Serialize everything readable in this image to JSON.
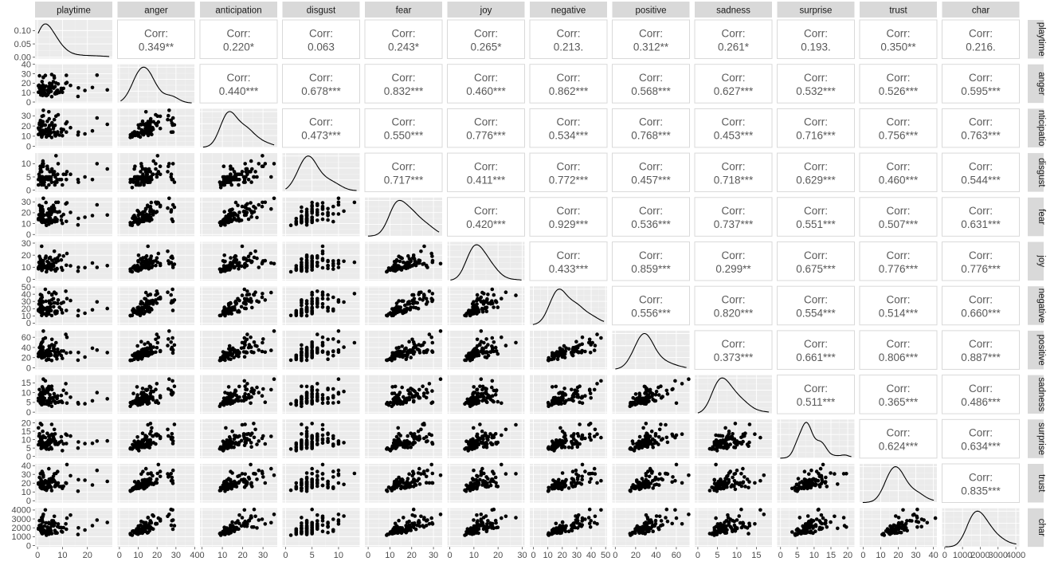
{
  "chart_data": {
    "type": "scatter",
    "subtype": "pairs-plot (GGally ggpairs)",
    "variables": [
      "playtime",
      "anger",
      "anticipation",
      "disgust",
      "fear",
      "joy",
      "negative",
      "positive",
      "sadness",
      "surprise",
      "trust",
      "char"
    ],
    "strip_labels": {
      "top": [
        "playtime",
        "anger",
        "anticipation",
        "disgust",
        "fear",
        "joy",
        "negative",
        "positive",
        "sadness",
        "surprise",
        "trust",
        "char"
      ],
      "right": [
        "playtime",
        "anger",
        "nticipatio",
        "disgust",
        "fear",
        "joy",
        "negative",
        "positive",
        "sadness",
        "surprise",
        "trust",
        "char"
      ]
    },
    "corr_label": "Corr:",
    "correlations": [
      [
        "0.349**",
        "0.220*",
        "0.063",
        "0.243*",
        "0.265*",
        "0.213.",
        "0.312**",
        "0.261*",
        "0.193.",
        "0.350**",
        "0.216."
      ],
      [
        "0.440***",
        "0.678***",
        "0.832***",
        "0.460***",
        "0.862***",
        "0.568***",
        "0.627***",
        "0.532***",
        "0.526***",
        "0.595***"
      ],
      [
        "0.473***",
        "0.550***",
        "0.776***",
        "0.534***",
        "0.768***",
        "0.453***",
        "0.716***",
        "0.756***",
        "0.763***"
      ],
      [
        "0.717***",
        "0.411***",
        "0.772***",
        "0.457***",
        "0.718***",
        "0.629***",
        "0.460***",
        "0.544***"
      ],
      [
        "0.420***",
        "0.929***",
        "0.536***",
        "0.737***",
        "0.551***",
        "0.507***",
        "0.631***"
      ],
      [
        "0.433***",
        "0.859***",
        "0.299**",
        "0.675***",
        "0.776***",
        "0.776***"
      ],
      [
        "0.556***",
        "0.820***",
        "0.554***",
        "0.514***",
        "0.660***"
      ],
      [
        "0.373***",
        "0.661***",
        "0.806***",
        "0.887***"
      ],
      [
        "0.511***",
        "0.365***",
        "0.486***"
      ],
      [
        "0.624***",
        "0.634***"
      ],
      [
        "0.835***"
      ]
    ],
    "x_ranges": [
      [
        -1,
        30
      ],
      [
        -1,
        40
      ],
      [
        -1,
        37
      ],
      [
        -0.6,
        14
      ],
      [
        -1.5,
        34
      ],
      [
        -1,
        31
      ],
      [
        -2.5,
        51
      ],
      [
        -3,
        73
      ],
      [
        -0.8,
        19
      ],
      [
        -1,
        22
      ],
      [
        -2,
        42
      ],
      [
        -150,
        4200
      ]
    ],
    "x_ticks": [
      [
        "0",
        "10",
        "20"
      ],
      [
        "0",
        "10",
        "20",
        "30",
        "40"
      ],
      [
        "0",
        "10",
        "20",
        "30"
      ],
      [
        "0",
        "5",
        "10"
      ],
      [
        "0",
        "10",
        "20",
        "30"
      ],
      [
        "0",
        "10",
        "20",
        "30"
      ],
      [
        "0",
        "10",
        "20",
        "30",
        "40",
        "50"
      ],
      [
        "0",
        "20",
        "40",
        "60"
      ],
      [
        "0",
        "5",
        "10",
        "15"
      ],
      [
        "0",
        "5",
        "10",
        "15",
        "20"
      ],
      [
        "0",
        "10",
        "20",
        "30",
        "40"
      ],
      [
        "0",
        "1000",
        "2000",
        "3000",
        "4000"
      ]
    ],
    "x_tick_values": [
      [
        0,
        10,
        20
      ],
      [
        0,
        10,
        20,
        30,
        40
      ],
      [
        0,
        10,
        20,
        30
      ],
      [
        0,
        5,
        10
      ],
      [
        0,
        10,
        20,
        30
      ],
      [
        0,
        10,
        20,
        30
      ],
      [
        0,
        10,
        20,
        30,
        40,
        50
      ],
      [
        0,
        20,
        40,
        60
      ],
      [
        0,
        5,
        10,
        15
      ],
      [
        0,
        5,
        10,
        15,
        20
      ],
      [
        0,
        10,
        20,
        30,
        40
      ],
      [
        0,
        1000,
        2000,
        3000,
        4000
      ]
    ],
    "y_ticks": [
      [
        "0.00",
        "0.05",
        "0.10"
      ],
      [
        "0",
        "10",
        "20",
        "30",
        "40"
      ],
      [
        "0",
        "10",
        "20",
        "30"
      ],
      [
        "0",
        "5",
        "10"
      ],
      [
        "0",
        "10",
        "20",
        "30"
      ],
      [
        "0",
        "10",
        "20",
        "30"
      ],
      [
        "0",
        "10",
        "20",
        "30",
        "40",
        "50"
      ],
      [
        "0",
        "20",
        "40",
        "60"
      ],
      [
        "0",
        "5",
        "10",
        "15"
      ],
      [
        "0",
        "5",
        "10",
        "15",
        "20"
      ],
      [
        "0",
        "10",
        "20",
        "30",
        "40"
      ],
      [
        "0",
        "1000",
        "2000",
        "3000",
        "4000"
      ]
    ],
    "y_tick_values": [
      [
        0,
        0.05,
        0.1
      ],
      [
        0,
        10,
        20,
        30,
        40
      ],
      [
        0,
        10,
        20,
        30
      ],
      [
        0,
        5,
        10
      ],
      [
        0,
        10,
        20,
        30
      ],
      [
        0,
        10,
        20,
        30
      ],
      [
        0,
        10,
        20,
        30,
        40,
        50
      ],
      [
        0,
        20,
        40,
        60
      ],
      [
        0,
        5,
        10,
        15
      ],
      [
        0,
        5,
        10,
        15,
        20
      ],
      [
        0,
        10,
        20,
        30,
        40
      ],
      [
        0,
        1000,
        2000,
        3000,
        4000
      ]
    ],
    "playtime_density_ylim": [
      -0.005,
      0.14
    ],
    "n_points": 90,
    "legend": "none",
    "grid": true
  }
}
